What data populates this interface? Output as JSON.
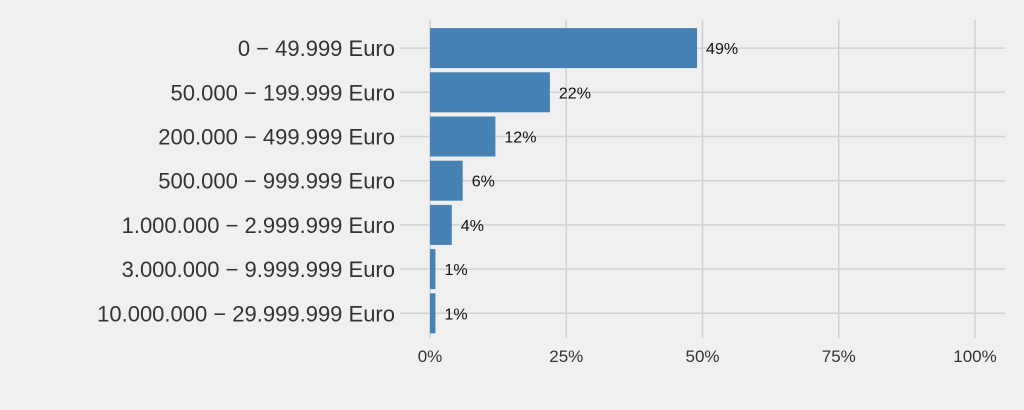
{
  "chart_data": {
    "type": "bar",
    "orientation": "horizontal",
    "title": "",
    "xlabel": "",
    "ylabel": "",
    "categories": [
      "0 − 49.999 Euro",
      "50.000 − 199.999 Euro",
      "200.000 − 499.999 Euro",
      "500.000 − 999.999 Euro",
      "1.000.000 − 2.999.999 Euro",
      "3.000.000 − 9.999.999 Euro",
      "10.000.000 − 29.999.999 Euro"
    ],
    "values": [
      49,
      22,
      12,
      6,
      4,
      1,
      1
    ],
    "data_labels": [
      "49%",
      "22%",
      "12%",
      "6%",
      "4%",
      "1%",
      "1%"
    ],
    "xlim": [
      0,
      100
    ],
    "xticks": [
      0,
      25,
      50,
      75,
      100
    ],
    "xtick_labels": [
      "0%",
      "25%",
      "50%",
      "75%",
      "100%"
    ],
    "grid": true,
    "legend": "none",
    "colors": {
      "bar": "#4682b4",
      "background": "#f0f0f0",
      "grid": "#d2d2d2"
    }
  }
}
